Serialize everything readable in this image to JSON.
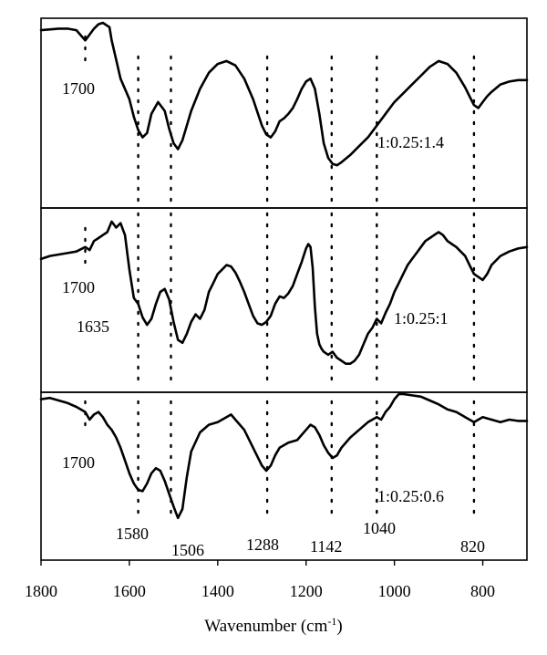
{
  "chart_data": {
    "type": "line",
    "title": "",
    "xlabel": {
      "main": "Wavenumber (cm",
      "sup": "-1",
      "close": ")"
    },
    "xlim": [
      1800,
      700
    ],
    "x_ticks": [
      1800,
      1600,
      1400,
      1200,
      1000,
      800
    ],
    "grid": false,
    "panels": [
      {
        "name": "1:0.25:1.4",
        "labels": [
          "1700"
        ],
        "x": [
          1800,
          1760,
          1740,
          1720,
          1700,
          1690,
          1680,
          1670,
          1660,
          1645,
          1640,
          1630,
          1620,
          1600,
          1590,
          1580,
          1570,
          1560,
          1550,
          1535,
          1520,
          1510,
          1500,
          1490,
          1480,
          1470,
          1460,
          1440,
          1420,
          1400,
          1380,
          1360,
          1340,
          1320,
          1300,
          1290,
          1280,
          1270,
          1260,
          1250,
          1240,
          1230,
          1220,
          1210,
          1200,
          1190,
          1180,
          1170,
          1160,
          1150,
          1140,
          1130,
          1120,
          1100,
          1080,
          1060,
          1040,
          1020,
          1000,
          980,
          960,
          940,
          920,
          900,
          880,
          860,
          840,
          830,
          820,
          810,
          800,
          790,
          780,
          760,
          740,
          720,
          700
        ],
        "y": [
          0.95,
          0.96,
          0.96,
          0.95,
          0.88,
          0.92,
          0.96,
          0.99,
          1.0,
          0.97,
          0.88,
          0.75,
          0.62,
          0.48,
          0.36,
          0.27,
          0.22,
          0.25,
          0.38,
          0.46,
          0.4,
          0.28,
          0.18,
          0.14,
          0.2,
          0.3,
          0.4,
          0.55,
          0.66,
          0.72,
          0.74,
          0.71,
          0.62,
          0.48,
          0.3,
          0.24,
          0.22,
          0.26,
          0.33,
          0.35,
          0.38,
          0.42,
          0.48,
          0.55,
          0.6,
          0.62,
          0.55,
          0.38,
          0.18,
          0.08,
          0.04,
          0.03,
          0.05,
          0.1,
          0.16,
          0.22,
          0.3,
          0.38,
          0.46,
          0.52,
          0.58,
          0.64,
          0.7,
          0.74,
          0.72,
          0.66,
          0.56,
          0.5,
          0.44,
          0.42,
          0.46,
          0.5,
          0.53,
          0.58,
          0.6,
          0.61,
          0.61
        ]
      },
      {
        "name": "1:0.25:1",
        "labels": [
          "1700",
          "1635"
        ],
        "x": [
          1800,
          1780,
          1760,
          1740,
          1720,
          1700,
          1690,
          1680,
          1670,
          1660,
          1650,
          1640,
          1630,
          1620,
          1610,
          1600,
          1590,
          1580,
          1570,
          1560,
          1550,
          1540,
          1530,
          1520,
          1510,
          1500,
          1490,
          1480,
          1470,
          1460,
          1450,
          1440,
          1430,
          1420,
          1410,
          1400,
          1390,
          1380,
          1370,
          1360,
          1350,
          1340,
          1330,
          1320,
          1310,
          1300,
          1290,
          1280,
          1270,
          1260,
          1250,
          1240,
          1230,
          1220,
          1210,
          1200,
          1195,
          1190,
          1185,
          1180,
          1175,
          1170,
          1165,
          1160,
          1150,
          1140,
          1130,
          1120,
          1110,
          1100,
          1090,
          1080,
          1070,
          1060,
          1050,
          1040,
          1030,
          1020,
          1010,
          1000,
          990,
          980,
          970,
          960,
          950,
          940,
          930,
          920,
          910,
          900,
          890,
          880,
          870,
          860,
          850,
          840,
          830,
          820,
          810,
          800,
          790,
          780,
          760,
          740,
          720,
          700
        ],
        "y": [
          0.72,
          0.74,
          0.75,
          0.76,
          0.77,
          0.8,
          0.78,
          0.84,
          0.86,
          0.88,
          0.9,
          0.97,
          0.93,
          0.96,
          0.88,
          0.65,
          0.46,
          0.42,
          0.33,
          0.28,
          0.32,
          0.42,
          0.5,
          0.52,
          0.45,
          0.3,
          0.18,
          0.16,
          0.22,
          0.3,
          0.35,
          0.32,
          0.38,
          0.5,
          0.56,
          0.62,
          0.65,
          0.68,
          0.67,
          0.63,
          0.57,
          0.5,
          0.42,
          0.34,
          0.29,
          0.28,
          0.3,
          0.34,
          0.42,
          0.47,
          0.46,
          0.49,
          0.54,
          0.62,
          0.7,
          0.79,
          0.82,
          0.8,
          0.66,
          0.4,
          0.22,
          0.15,
          0.12,
          0.1,
          0.08,
          0.1,
          0.06,
          0.04,
          0.02,
          0.02,
          0.04,
          0.08,
          0.15,
          0.22,
          0.26,
          0.32,
          0.29,
          0.36,
          0.42,
          0.5,
          0.56,
          0.62,
          0.68,
          0.72,
          0.76,
          0.8,
          0.84,
          0.86,
          0.88,
          0.9,
          0.88,
          0.84,
          0.82,
          0.8,
          0.77,
          0.74,
          0.68,
          0.62,
          0.6,
          0.58,
          0.62,
          0.68,
          0.74,
          0.77,
          0.79,
          0.8
        ]
      },
      {
        "name": "1:0.25:0.6",
        "labels": [
          "1700",
          "1580",
          "1506",
          "1288",
          "1142",
          "1040",
          "820"
        ],
        "x": [
          1800,
          1780,
          1760,
          1740,
          1720,
          1700,
          1690,
          1680,
          1670,
          1660,
          1650,
          1640,
          1630,
          1620,
          1610,
          1600,
          1590,
          1580,
          1570,
          1560,
          1550,
          1540,
          1530,
          1520,
          1510,
          1500,
          1490,
          1480,
          1470,
          1460,
          1440,
          1420,
          1400,
          1380,
          1370,
          1360,
          1340,
          1320,
          1300,
          1290,
          1280,
          1270,
          1260,
          1240,
          1220,
          1200,
          1190,
          1180,
          1170,
          1160,
          1150,
          1140,
          1130,
          1120,
          1100,
          1080,
          1060,
          1040,
          1030,
          1020,
          1010,
          1000,
          990,
          980,
          960,
          940,
          920,
          900,
          880,
          860,
          840,
          820,
          800,
          780,
          760,
          740,
          720,
          700
        ],
        "y": [
          0.96,
          0.97,
          0.95,
          0.93,
          0.9,
          0.86,
          0.8,
          0.84,
          0.86,
          0.82,
          0.76,
          0.72,
          0.66,
          0.58,
          0.48,
          0.38,
          0.3,
          0.25,
          0.24,
          0.3,
          0.38,
          0.42,
          0.4,
          0.32,
          0.22,
          0.12,
          0.03,
          0.1,
          0.35,
          0.55,
          0.7,
          0.76,
          0.78,
          0.82,
          0.84,
          0.8,
          0.72,
          0.58,
          0.44,
          0.4,
          0.44,
          0.52,
          0.58,
          0.62,
          0.64,
          0.72,
          0.76,
          0.74,
          0.68,
          0.6,
          0.54,
          0.5,
          0.52,
          0.58,
          0.66,
          0.72,
          0.78,
          0.82,
          0.8,
          0.86,
          0.9,
          0.96,
          1.0,
          1.0,
          0.99,
          0.98,
          0.95,
          0.92,
          0.88,
          0.86,
          0.82,
          0.78,
          0.82,
          0.8,
          0.78,
          0.8,
          0.79,
          0.79
        ]
      }
    ],
    "marked_wavenumbers": [
      1580,
      1506,
      1288,
      1142,
      1040,
      820
    ]
  }
}
